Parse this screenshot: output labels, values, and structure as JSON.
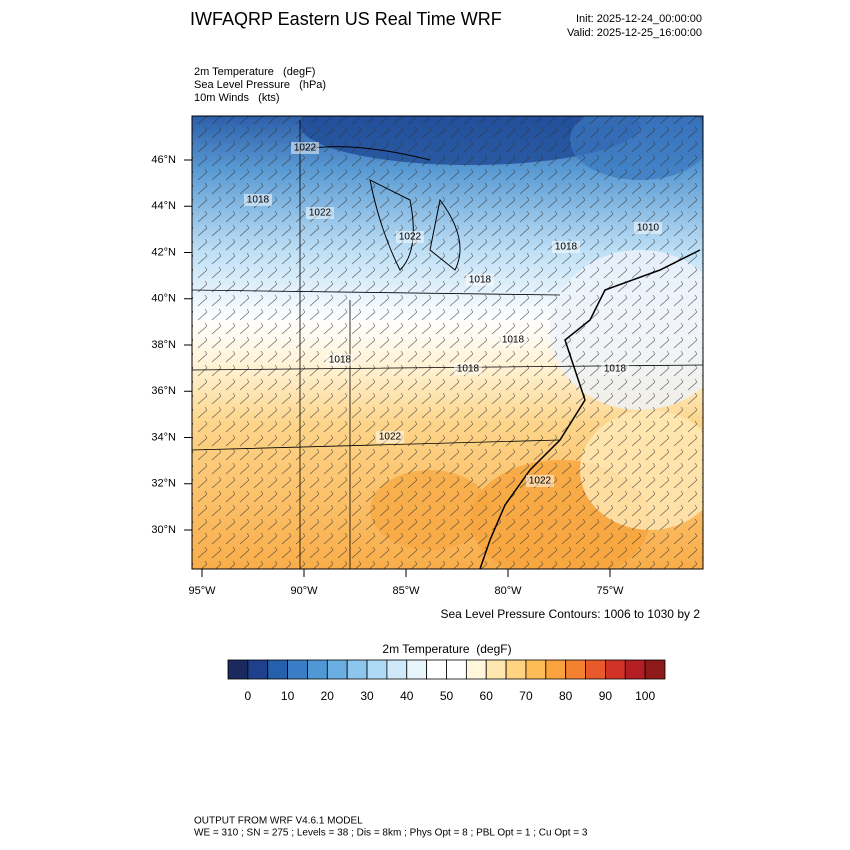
{
  "header": {
    "title": "IWFAQRP Eastern US Real Time WRF",
    "init": "Init: 2025-12-24_00:00:00",
    "valid": "Valid: 2025-12-25_16:00:00"
  },
  "fields": [
    "2m Temperature   (degF)",
    "Sea Level Pressure   (hPa)",
    "10m Winds   (kts)"
  ],
  "map": {
    "lat_labels": [
      "46°N",
      "44°N",
      "42°N",
      "40°N",
      "38°N",
      "36°N",
      "34°N",
      "32°N",
      "30°N"
    ],
    "lon_labels": [
      "95°W",
      "90°W",
      "85°W",
      "80°W",
      "75°W"
    ],
    "contour_labels": [
      "1022",
      "1018",
      "1022",
      "1022",
      "1018",
      "1010",
      "1018",
      "1018",
      "1018",
      "1018",
      "1018",
      "1022",
      "1022"
    ],
    "contour_note": "Sea Level Pressure Contours: 1006 to 1030 by 2"
  },
  "colorbar": {
    "title": "2m Temperature  (degF)",
    "ticks": [
      0,
      10,
      20,
      30,
      40,
      50,
      60,
      70,
      80,
      90,
      100
    ],
    "colors": [
      "#1b2a5e",
      "#1f418c",
      "#2660ad",
      "#3a7cc5",
      "#4f97d5",
      "#6aaee2",
      "#8cc6ee",
      "#aedaf6",
      "#cfe9fa",
      "#e8f5fd",
      "#ffffff",
      "#ffffff",
      "#fff6dc",
      "#ffe8b0",
      "#ffd37f",
      "#fdbb55",
      "#f9a23e",
      "#f3812f",
      "#e85a2a",
      "#d23327",
      "#b21e24",
      "#8e1a1c"
    ]
  },
  "footer": {
    "line1": "OUTPUT FROM WRF V4.6.1 MODEL",
    "line2": "WE = 310 ; SN = 275 ; Levels = 38 ; Dis = 8km ; Phys Opt = 8 ; PBL Opt = 1 ; Cu Opt = 3"
  }
}
